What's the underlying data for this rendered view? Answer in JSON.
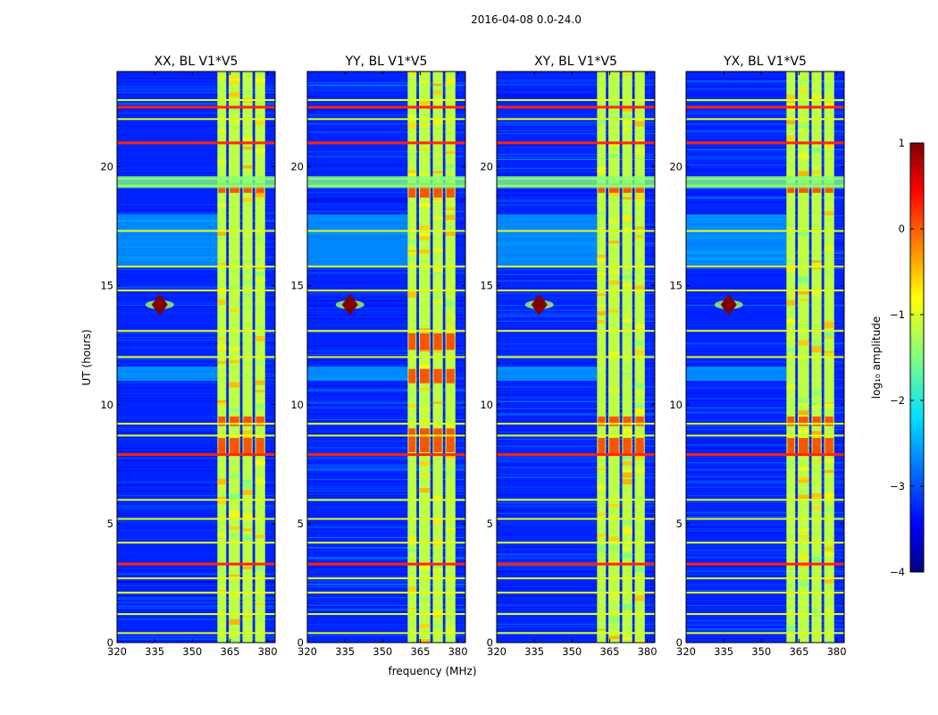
{
  "chart_data": {
    "type": "heatmap",
    "suptitle": "2016-04-08 0.0-24.0",
    "panels": [
      {
        "title": "XX, BL V1*V5",
        "pol": "XX"
      },
      {
        "title": "YY, BL V1*V5",
        "pol": "YY"
      },
      {
        "title": "XY, BL V1*V5",
        "pol": "XY"
      },
      {
        "title": "YX, BL V1*V5",
        "pol": "YX"
      }
    ],
    "xlabel": "frequency (MHz)",
    "ylabel": "UT (hours)",
    "xlim": [
      320,
      383
    ],
    "ylim": [
      0,
      24
    ],
    "xticks": [
      320,
      335,
      350,
      365,
      380
    ],
    "yticks": [
      0,
      5,
      10,
      15,
      20
    ],
    "colorbar": {
      "label": "log₁₀ amplitude",
      "range": [
        -4,
        1
      ],
      "ticks": [
        1,
        0,
        -1,
        -2,
        -3,
        -4
      ],
      "tick_labels": [
        "1",
        "0",
        "−1",
        "−2",
        "−3",
        "−4"
      ],
      "colormap": "jet"
    },
    "features": {
      "background_level": -3.2,
      "band_occupancy_mhz": [
        [
          360,
          363.5
        ],
        [
          364.5,
          369
        ],
        [
          370,
          374
        ],
        [
          375,
          379
        ]
      ],
      "band_level": -1.2,
      "rfi_lines_ut": [
        0.4,
        1.2,
        2.1,
        2.7,
        3.3,
        4.2,
        5.2,
        6.0,
        7.9,
        8.7,
        9.2,
        12.0,
        13.1,
        14.8,
        15.8,
        17.3,
        19.2,
        19.5,
        21.0,
        22.0,
        22.5,
        22.8
      ],
      "strong_rfi_lines_ut": [
        3.3,
        7.9,
        21.0,
        22.5
      ],
      "hotspot": {
        "freq_mhz": 337,
        "ut": 14.2,
        "level": 1.0
      }
    }
  }
}
